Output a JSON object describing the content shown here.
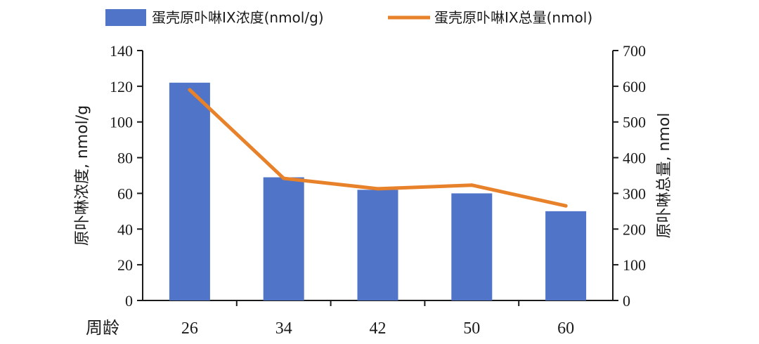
{
  "chart_data": {
    "type": "bar+line",
    "categories": [
      "26",
      "34",
      "42",
      "50",
      "60"
    ],
    "xlabel": "周龄",
    "series": [
      {
        "name": "蛋壳原卟啉IX浓度(nmol/g)",
        "type": "bar",
        "axis": "left",
        "color": "#4f74c8",
        "values": [
          122,
          69,
          62,
          60,
          50
        ]
      },
      {
        "name": "蛋壳原卟啉IX总量(nmol)",
        "type": "line",
        "axis": "right",
        "color": "#e8822a",
        "values": [
          590,
          342,
          313,
          323,
          265
        ]
      }
    ],
    "y_left": {
      "label": "原卟啉浓度, nmol/g",
      "min": 0,
      "max": 140,
      "ticks": [
        "0",
        "20",
        "40",
        "60",
        "80",
        "100",
        "120",
        "140"
      ]
    },
    "y_right": {
      "label": "原卟啉总量, nmol",
      "min": 0,
      "max": 700,
      "ticks": [
        "0",
        "100",
        "200",
        "300",
        "400",
        "500",
        "600",
        "700"
      ]
    },
    "grid": false,
    "legend_position": "top"
  }
}
